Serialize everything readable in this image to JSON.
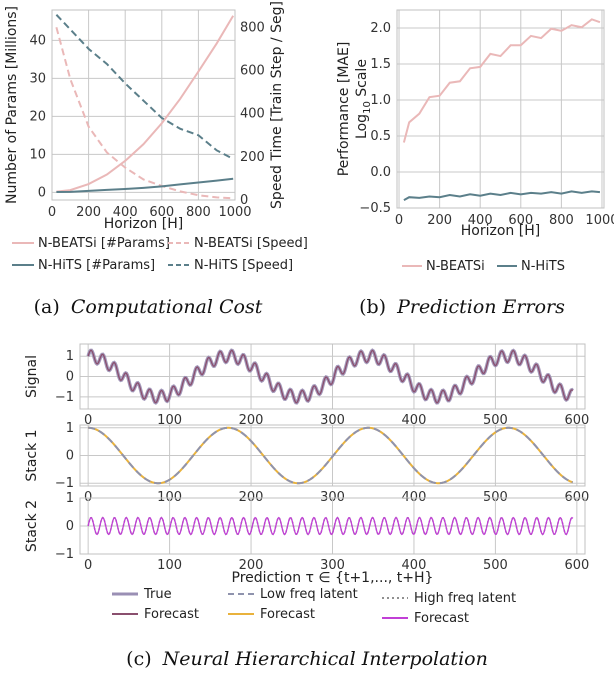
{
  "chart_data": [
    {
      "id": "a",
      "type": "line",
      "caption_letter": "(a)",
      "caption_title": "Computational Cost",
      "xlabel": "Horizon [H]",
      "ylabel": "Number of Params [Millions]",
      "y2label": "Speed Time [Train Step / Seg]",
      "xlim": [
        0,
        1000
      ],
      "ylim": [
        -2,
        48
      ],
      "y2lim": [
        0,
        880
      ],
      "xticks": [
        0,
        200,
        400,
        600,
        800,
        1000
      ],
      "yticks": [
        0,
        10,
        20,
        30,
        40
      ],
      "y2ticks": [
        0,
        200,
        400,
        600,
        800
      ],
      "grid": true,
      "legend_position": "below",
      "x": [
        24,
        100,
        200,
        300,
        400,
        500,
        600,
        700,
        800,
        900,
        990
      ],
      "series": [
        {
          "name": "N-BEATSi [#Params]",
          "axis": "left",
          "style": "solid",
          "color": "#eab8b8",
          "values": [
            0.2,
            0.6,
            2.2,
            4.7,
            8.3,
            12.7,
            18.2,
            24.6,
            31.8,
            39.2,
            46.5
          ]
        },
        {
          "name": "N-BEATSi [Speed]",
          "axis": "right",
          "style": "dashed",
          "color": "#eab8b8",
          "values": [
            800,
            560,
            340,
            220,
            150,
            95,
            65,
            40,
            22,
            12,
            8
          ]
        },
        {
          "name": "N-HiTS [#Params]",
          "axis": "left",
          "style": "solid",
          "color": "#5b7f8a",
          "values": [
            0.1,
            0.15,
            0.4,
            0.65,
            0.9,
            1.2,
            1.6,
            2.1,
            2.6,
            3.1,
            3.6
          ]
        },
        {
          "name": "N-HiTS [Speed]",
          "axis": "right",
          "style": "dashed",
          "color": "#5b7f8a",
          "values": [
            858,
            790,
            700,
            630,
            540,
            460,
            380,
            330,
            300,
            230,
            190
          ]
        }
      ]
    },
    {
      "id": "b",
      "type": "line",
      "caption_letter": "(b)",
      "caption_title": "Prediction Errors",
      "xlabel": "Horizon [H]",
      "ylabel": "Performance [MAE]",
      "ylabel2": "Log",
      "ylabel2_sub": "10",
      "ylabel2_rest": " Scale",
      "xlim": [
        -10,
        1010
      ],
      "ylim": [
        -0.5,
        2.25
      ],
      "xticks": [
        0,
        200,
        400,
        600,
        800,
        1000
      ],
      "yticks": [
        -0.5,
        0.0,
        0.5,
        1.0,
        1.5,
        2.0
      ],
      "ytick_labels": [
        "−0.5",
        "0.0",
        "0.5",
        "1.0",
        "1.5",
        "2.0"
      ],
      "grid": true,
      "legend_position": "below",
      "x": [
        24,
        50,
        100,
        150,
        200,
        250,
        300,
        350,
        400,
        450,
        500,
        550,
        600,
        650,
        700,
        750,
        800,
        850,
        900,
        950,
        990
      ],
      "series": [
        {
          "name": "N-BEATSi",
          "color": "#eab8b8",
          "values": [
            0.45,
            0.65,
            0.85,
            1.0,
            1.1,
            1.2,
            1.3,
            1.4,
            1.5,
            1.6,
            1.65,
            1.72,
            1.8,
            1.85,
            1.9,
            1.95,
            2.0,
            2.0,
            2.05,
            2.08,
            2.12
          ]
        },
        {
          "name": "N-HiTS",
          "color": "#5b7f8a",
          "values": [
            -0.38,
            -0.36,
            -0.35,
            -0.35,
            -0.34,
            -0.33,
            -0.33,
            -0.32,
            -0.32,
            -0.31,
            -0.31,
            -0.3,
            -0.3,
            -0.3,
            -0.29,
            -0.29,
            -0.29,
            -0.28,
            -0.28,
            -0.28,
            -0.27
          ]
        }
      ]
    },
    {
      "id": "c",
      "type": "line",
      "caption_letter": "(c)",
      "caption_title": "Neural Hierarchical Interpolation",
      "xlabel": "Prediction τ ∈ {t+1,..., t+H}",
      "xlim": [
        -10,
        610
      ],
      "xticks": [
        0,
        100,
        200,
        300,
        400,
        500,
        600
      ],
      "grid": true,
      "legend_position": "below",
      "x_range": [
        0,
        595
      ],
      "panels": [
        {
          "ylabel": "Signal",
          "ylim": [
            -1.6,
            1.6
          ],
          "yticks": [
            -1,
            0,
            1
          ],
          "ytick_labels": [
            "−1",
            "0",
            "1"
          ],
          "components": {
            "low_amp": 1.0,
            "low_period": 172,
            "high_amp": 0.3,
            "high_period": 14.4
          }
        },
        {
          "ylabel": "Stack 1",
          "ylim": [
            -1.1,
            1.1
          ],
          "yticks": [
            -1,
            0,
            1
          ],
          "ytick_labels": [
            "−1",
            "0",
            "1"
          ],
          "components": {
            "low_amp": 1.0,
            "low_period": 172
          }
        },
        {
          "ylabel": "Stack 2",
          "ylim": [
            -1.0,
            1.0
          ],
          "yticks": [
            -1,
            0,
            1
          ],
          "ytick_labels": [
            "−1",
            "0",
            "1"
          ],
          "components": {
            "high_amp": 0.3,
            "high_period": 14.4
          }
        }
      ],
      "legend": [
        {
          "name": "True",
          "style": "solid",
          "color": "#9a8fb4"
        },
        {
          "name": "Low freq latent",
          "style": "dashed",
          "color": "#8f93ad"
        },
        {
          "name": "High freq latent",
          "style": "dotted",
          "color": "#909090"
        },
        {
          "name": "Forecast",
          "style": "solid",
          "color": "#8a4f6e"
        },
        {
          "name": "Forecast",
          "style": "solid",
          "color": "#e9b23c"
        },
        {
          "name": "Forecast",
          "style": "solid",
          "color": "#c13fd6"
        }
      ]
    }
  ]
}
